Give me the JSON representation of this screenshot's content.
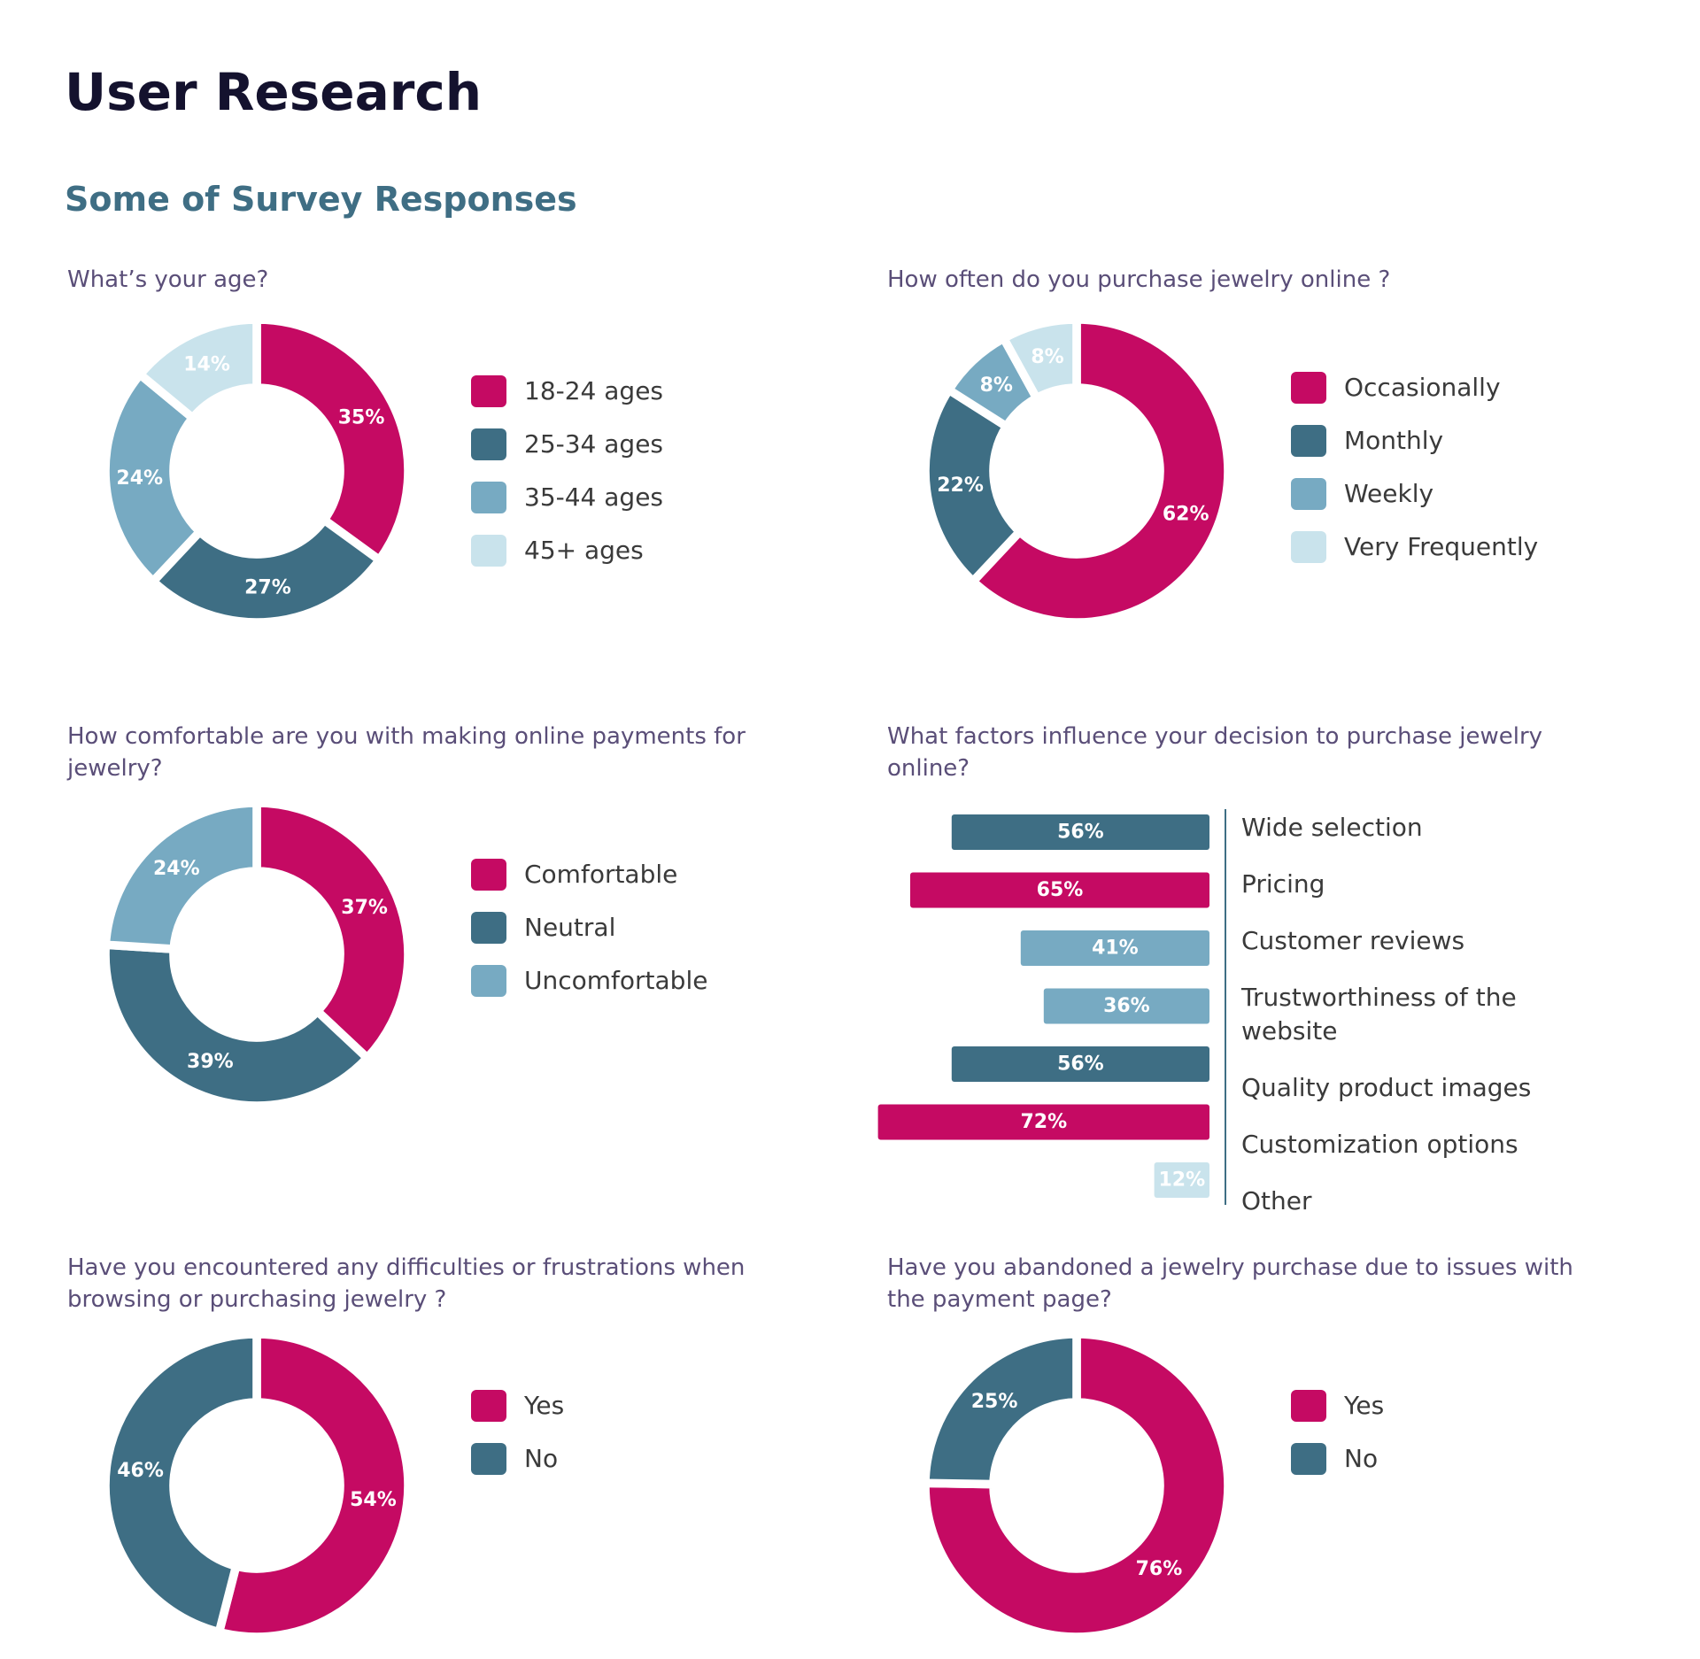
{
  "page": {
    "title": "User Research",
    "subtitle": "Some of Survey Responses"
  },
  "colors": {
    "magenta": "#c50a63",
    "teal": "#3e6e84",
    "blue": "#77aac2",
    "pale": "#c9e3ec"
  },
  "chart_data": [
    {
      "type": "pie",
      "title": "What’s your age?",
      "categories": [
        "18-24 ages",
        "25-34 ages",
        "35-44 ages",
        "45+ ages"
      ],
      "values": [
        35,
        27,
        24,
        14
      ],
      "labels": [
        "35%",
        "27%",
        "24%",
        "14%"
      ],
      "colors": [
        "#c50a63",
        "#3e6e84",
        "#77aac2",
        "#c9e3ec"
      ],
      "label_colors": [
        "#ffffff",
        "#ffffff",
        "#ffffff",
        "#ffffff"
      ]
    },
    {
      "type": "pie",
      "title": "How often do you purchase jewelry online ?",
      "categories": [
        "Occasionally",
        "Monthly",
        "Weekly",
        "Very Frequently"
      ],
      "values": [
        62,
        22,
        8,
        8
      ],
      "labels": [
        "62%",
        "22%",
        "8%",
        "8%"
      ],
      "colors": [
        "#c50a63",
        "#3e6e84",
        "#77aac2",
        "#c9e3ec"
      ],
      "label_colors": [
        "#ffffff",
        "#ffffff",
        "#ffffff",
        "#ffffff"
      ]
    },
    {
      "type": "pie",
      "title": "How comfortable are you with making online payments for jewelry?",
      "categories": [
        "Comfortable",
        "Neutral",
        "Uncomfortable"
      ],
      "values": [
        37,
        39,
        24
      ],
      "labels": [
        "37%",
        "39%",
        "24%"
      ],
      "colors": [
        "#c50a63",
        "#3e6e84",
        "#77aac2"
      ],
      "label_colors": [
        "#ffffff",
        "#ffffff",
        "#ffffff"
      ]
    },
    {
      "type": "bar",
      "title": "What factors influence your decision to purchase jewelry online?",
      "categories": [
        "Wide selection",
        "Pricing",
        "Customer reviews",
        "Trustworthiness of the website",
        "Quality product images",
        "Customization options",
        "Other"
      ],
      "values": [
        56,
        65,
        41,
        36,
        56,
        72,
        12
      ],
      "labels": [
        "56%",
        "65%",
        "41%",
        "36%",
        "56%",
        "72%",
        "12%"
      ],
      "colors": [
        "#3e6e84",
        "#c50a63",
        "#77aac2",
        "#77aac2",
        "#3e6e84",
        "#c50a63",
        "#c9e3ec"
      ],
      "label_colors": [
        "#ffffff",
        "#ffffff",
        "#ffffff",
        "#ffffff",
        "#ffffff",
        "#ffffff",
        "#ffffff"
      ]
    },
    {
      "type": "pie",
      "title": "Have you encountered any difficulties or frustrations when browsing or purchasing jewelry ?",
      "categories": [
        "Yes",
        "No"
      ],
      "values": [
        54,
        46
      ],
      "labels": [
        "54%",
        "46%"
      ],
      "colors": [
        "#c50a63",
        "#3e6e84"
      ],
      "label_colors": [
        "#ffffff",
        "#ffffff"
      ]
    },
    {
      "type": "pie",
      "title": "Have you abandoned a jewelry purchase due to issues with the payment page?",
      "categories": [
        "Yes",
        "No"
      ],
      "values": [
        76,
        25
      ],
      "labels": [
        "76%",
        "25%"
      ],
      "colors": [
        "#c50a63",
        "#3e6e84"
      ],
      "label_colors": [
        "#ffffff",
        "#ffffff"
      ]
    }
  ]
}
